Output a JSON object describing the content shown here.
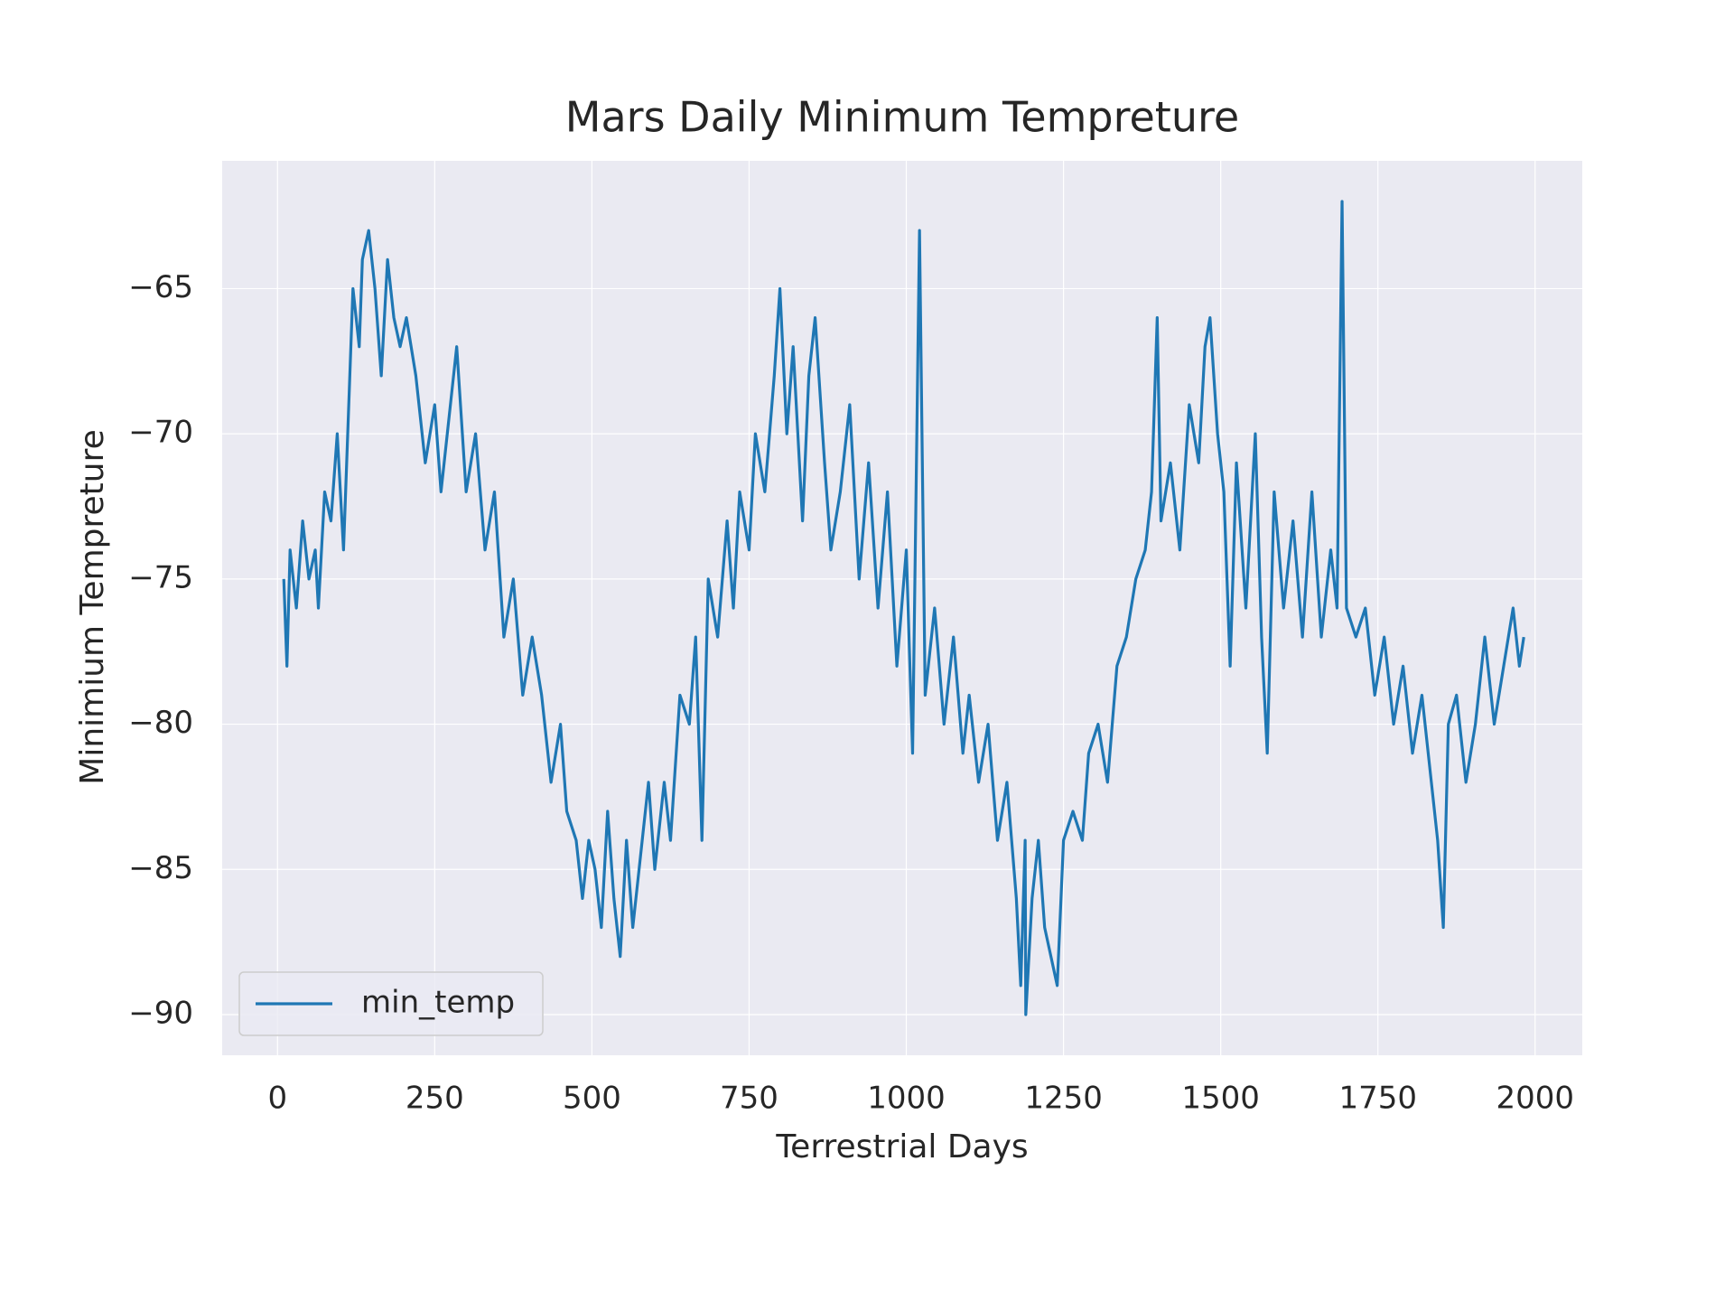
{
  "chart_data": {
    "type": "line",
    "title": "Mars Daily Minimum Tempreture",
    "xlabel": "Terrestrial Days",
    "ylabel": "Minimium Tempreture",
    "x": [
      10,
      15,
      20,
      30,
      40,
      50,
      60,
      65,
      75,
      85,
      95,
      105,
      115,
      120,
      130,
      135,
      145,
      155,
      165,
      175,
      185,
      195,
      205,
      220,
      235,
      250,
      260,
      270,
      285,
      300,
      315,
      330,
      345,
      360,
      375,
      390,
      405,
      420,
      435,
      450,
      460,
      475,
      485,
      495,
      505,
      515,
      525,
      535,
      545,
      555,
      565,
      575,
      590,
      600,
      615,
      625,
      640,
      655,
      665,
      675,
      685,
      700,
      715,
      725,
      735,
      750,
      760,
      775,
      790,
      799,
      810,
      820,
      835,
      845,
      855,
      870,
      880,
      895,
      910,
      925,
      940,
      955,
      970,
      985,
      1000,
      1010,
      1021,
      1030,
      1045,
      1060,
      1075,
      1090,
      1100,
      1115,
      1130,
      1145,
      1160,
      1175,
      1182,
      1189,
      1190,
      1200,
      1210,
      1220,
      1230,
      1240,
      1250,
      1265,
      1280,
      1290,
      1305,
      1320,
      1335,
      1350,
      1365,
      1380,
      1390,
      1399,
      1405,
      1420,
      1435,
      1450,
      1465,
      1475,
      1483,
      1495,
      1505,
      1515,
      1525,
      1540,
      1555,
      1565,
      1574,
      1585,
      1600,
      1615,
      1630,
      1645,
      1660,
      1675,
      1685,
      1693,
      1700,
      1715,
      1730,
      1745,
      1760,
      1775,
      1790,
      1805,
      1820,
      1835,
      1845,
      1854,
      1862,
      1875,
      1890,
      1905,
      1920,
      1935,
      1950,
      1965,
      1975,
      1982
    ],
    "series": [
      {
        "name": "min_temp",
        "color": "#1f77b4",
        "values": [
          -75,
          -78,
          -74,
          -76,
          -73,
          -75,
          -74,
          -76,
          -72,
          -73,
          -70,
          -74,
          -68,
          -65,
          -67,
          -64,
          -63,
          -65,
          -68,
          -64,
          -66,
          -67,
          -66,
          -68,
          -71,
          -69,
          -72,
          -70,
          -67,
          -72,
          -70,
          -74,
          -72,
          -77,
          -75,
          -79,
          -77,
          -79,
          -82,
          -80,
          -83,
          -84,
          -86,
          -84,
          -85,
          -87,
          -83,
          -86,
          -88,
          -84,
          -87,
          -85,
          -82,
          -85,
          -82,
          -84,
          -79,
          -80,
          -77,
          -84,
          -75,
          -77,
          -73,
          -76,
          -72,
          -74,
          -70,
          -72,
          -68,
          -65,
          -70,
          -67,
          -73,
          -68,
          -66,
          -71,
          -74,
          -72,
          -69,
          -75,
          -71,
          -76,
          -72,
          -78,
          -74,
          -81,
          -63,
          -79,
          -76,
          -80,
          -77,
          -81,
          -79,
          -82,
          -80,
          -84,
          -82,
          -86,
          -89,
          -84,
          -90,
          -86,
          -84,
          -87,
          -88,
          -89,
          -84,
          -83,
          -84,
          -81,
          -80,
          -82,
          -78,
          -77,
          -75,
          -74,
          -72,
          -66,
          -73,
          -71,
          -74,
          -69,
          -71,
          -67,
          -66,
          -70,
          -72,
          -78,
          -71,
          -76,
          -70,
          -77,
          -81,
          -72,
          -76,
          -73,
          -77,
          -72,
          -77,
          -74,
          -76,
          -62,
          -76,
          -77,
          -76,
          -79,
          -77,
          -80,
          -78,
          -81,
          -79,
          -82,
          -84,
          -87,
          -80,
          -79,
          -82,
          -80,
          -77,
          -80,
          -78,
          -76,
          -78,
          -77
        ]
      }
    ],
    "xlim": [
      -88,
      2075
    ],
    "ylim": [
      -91.4,
      -60.6
    ],
    "xticks": [
      0,
      250,
      500,
      750,
      1000,
      1250,
      1500,
      1750,
      2000
    ],
    "yticks": [
      {
        "value": -90,
        "label": "−90"
      },
      {
        "value": -85,
        "label": "−85"
      },
      {
        "value": -80,
        "label": "−80"
      },
      {
        "value": -75,
        "label": "−75"
      },
      {
        "value": -70,
        "label": "−70"
      },
      {
        "value": -65,
        "label": "−65"
      }
    ],
    "grid": true,
    "legend": "lower left"
  }
}
